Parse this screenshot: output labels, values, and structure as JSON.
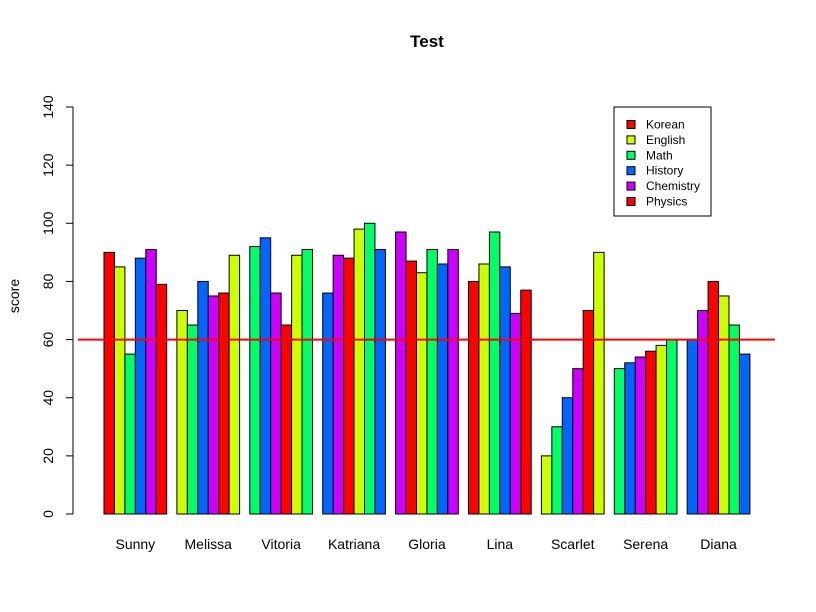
{
  "chart_data": {
    "type": "bar",
    "title": "Test",
    "xlabel": "",
    "ylabel": "score",
    "ylim": [
      0,
      140
    ],
    "yticks": [
      "0",
      "20",
      "40",
      "60",
      "80",
      "100",
      "120",
      "140"
    ],
    "grid": false,
    "legend_position": "top-right",
    "reference_line": {
      "value": 60,
      "color": "#ff0000"
    },
    "categories": [
      "Sunny",
      "Melissa",
      "Vitoria",
      "Katriana",
      "Gloria",
      "Lina",
      "Scarlet",
      "Serena",
      "Diana"
    ],
    "series": [
      {
        "name": "Korean",
        "color": "#ff0000"
      },
      {
        "name": "English",
        "color": "#ccff00"
      },
      {
        "name": "Math",
        "color": "#00ff66"
      },
      {
        "name": "History",
        "color": "#0066ff"
      },
      {
        "name": "Chemistry",
        "color": "#cc00ff"
      },
      {
        "name": "Physics",
        "color": "#ff0000"
      }
    ],
    "bar_sequence": [
      [
        90,
        85,
        55,
        88,
        91,
        79
      ],
      [
        70,
        65,
        80,
        75,
        76,
        89
      ],
      [
        92,
        95,
        76,
        65,
        89,
        91
      ],
      [
        76,
        89,
        88,
        98,
        100,
        91
      ],
      [
        97,
        87,
        83,
        91,
        86,
        91
      ],
      [
        80,
        86,
        97,
        85,
        69,
        77
      ],
      [
        20,
        30,
        40,
        50,
        70,
        90
      ],
      [
        50,
        52,
        54,
        56,
        58,
        60
      ],
      [
        60,
        70,
        80,
        75,
        65,
        55
      ]
    ],
    "bar_colors": [
      [
        "#ff0000",
        "#ccff00",
        "#00ff66",
        "#0066ff",
        "#cc00ff",
        "#ff0000"
      ],
      [
        "#ccff00",
        "#00ff66",
        "#0066ff",
        "#cc00ff",
        "#ff0000",
        "#ccff00"
      ],
      [
        "#00ff66",
        "#0066ff",
        "#cc00ff",
        "#ff0000",
        "#ccff00",
        "#00ff66"
      ],
      [
        "#0066ff",
        "#cc00ff",
        "#ff0000",
        "#ccff00",
        "#00ff66",
        "#0066ff"
      ],
      [
        "#cc00ff",
        "#ff0000",
        "#ccff00",
        "#00ff66",
        "#0066ff",
        "#cc00ff"
      ],
      [
        "#ff0000",
        "#ccff00",
        "#00ff66",
        "#0066ff",
        "#cc00ff",
        "#ff0000"
      ],
      [
        "#ccff00",
        "#00ff66",
        "#0066ff",
        "#cc00ff",
        "#ff0000",
        "#ccff00"
      ],
      [
        "#00ff66",
        "#0066ff",
        "#cc00ff",
        "#ff0000",
        "#ccff00",
        "#00ff66"
      ],
      [
        "#0066ff",
        "#cc00ff",
        "#ff0000",
        "#ccff00",
        "#00ff66",
        "#0066ff"
      ]
    ]
  }
}
